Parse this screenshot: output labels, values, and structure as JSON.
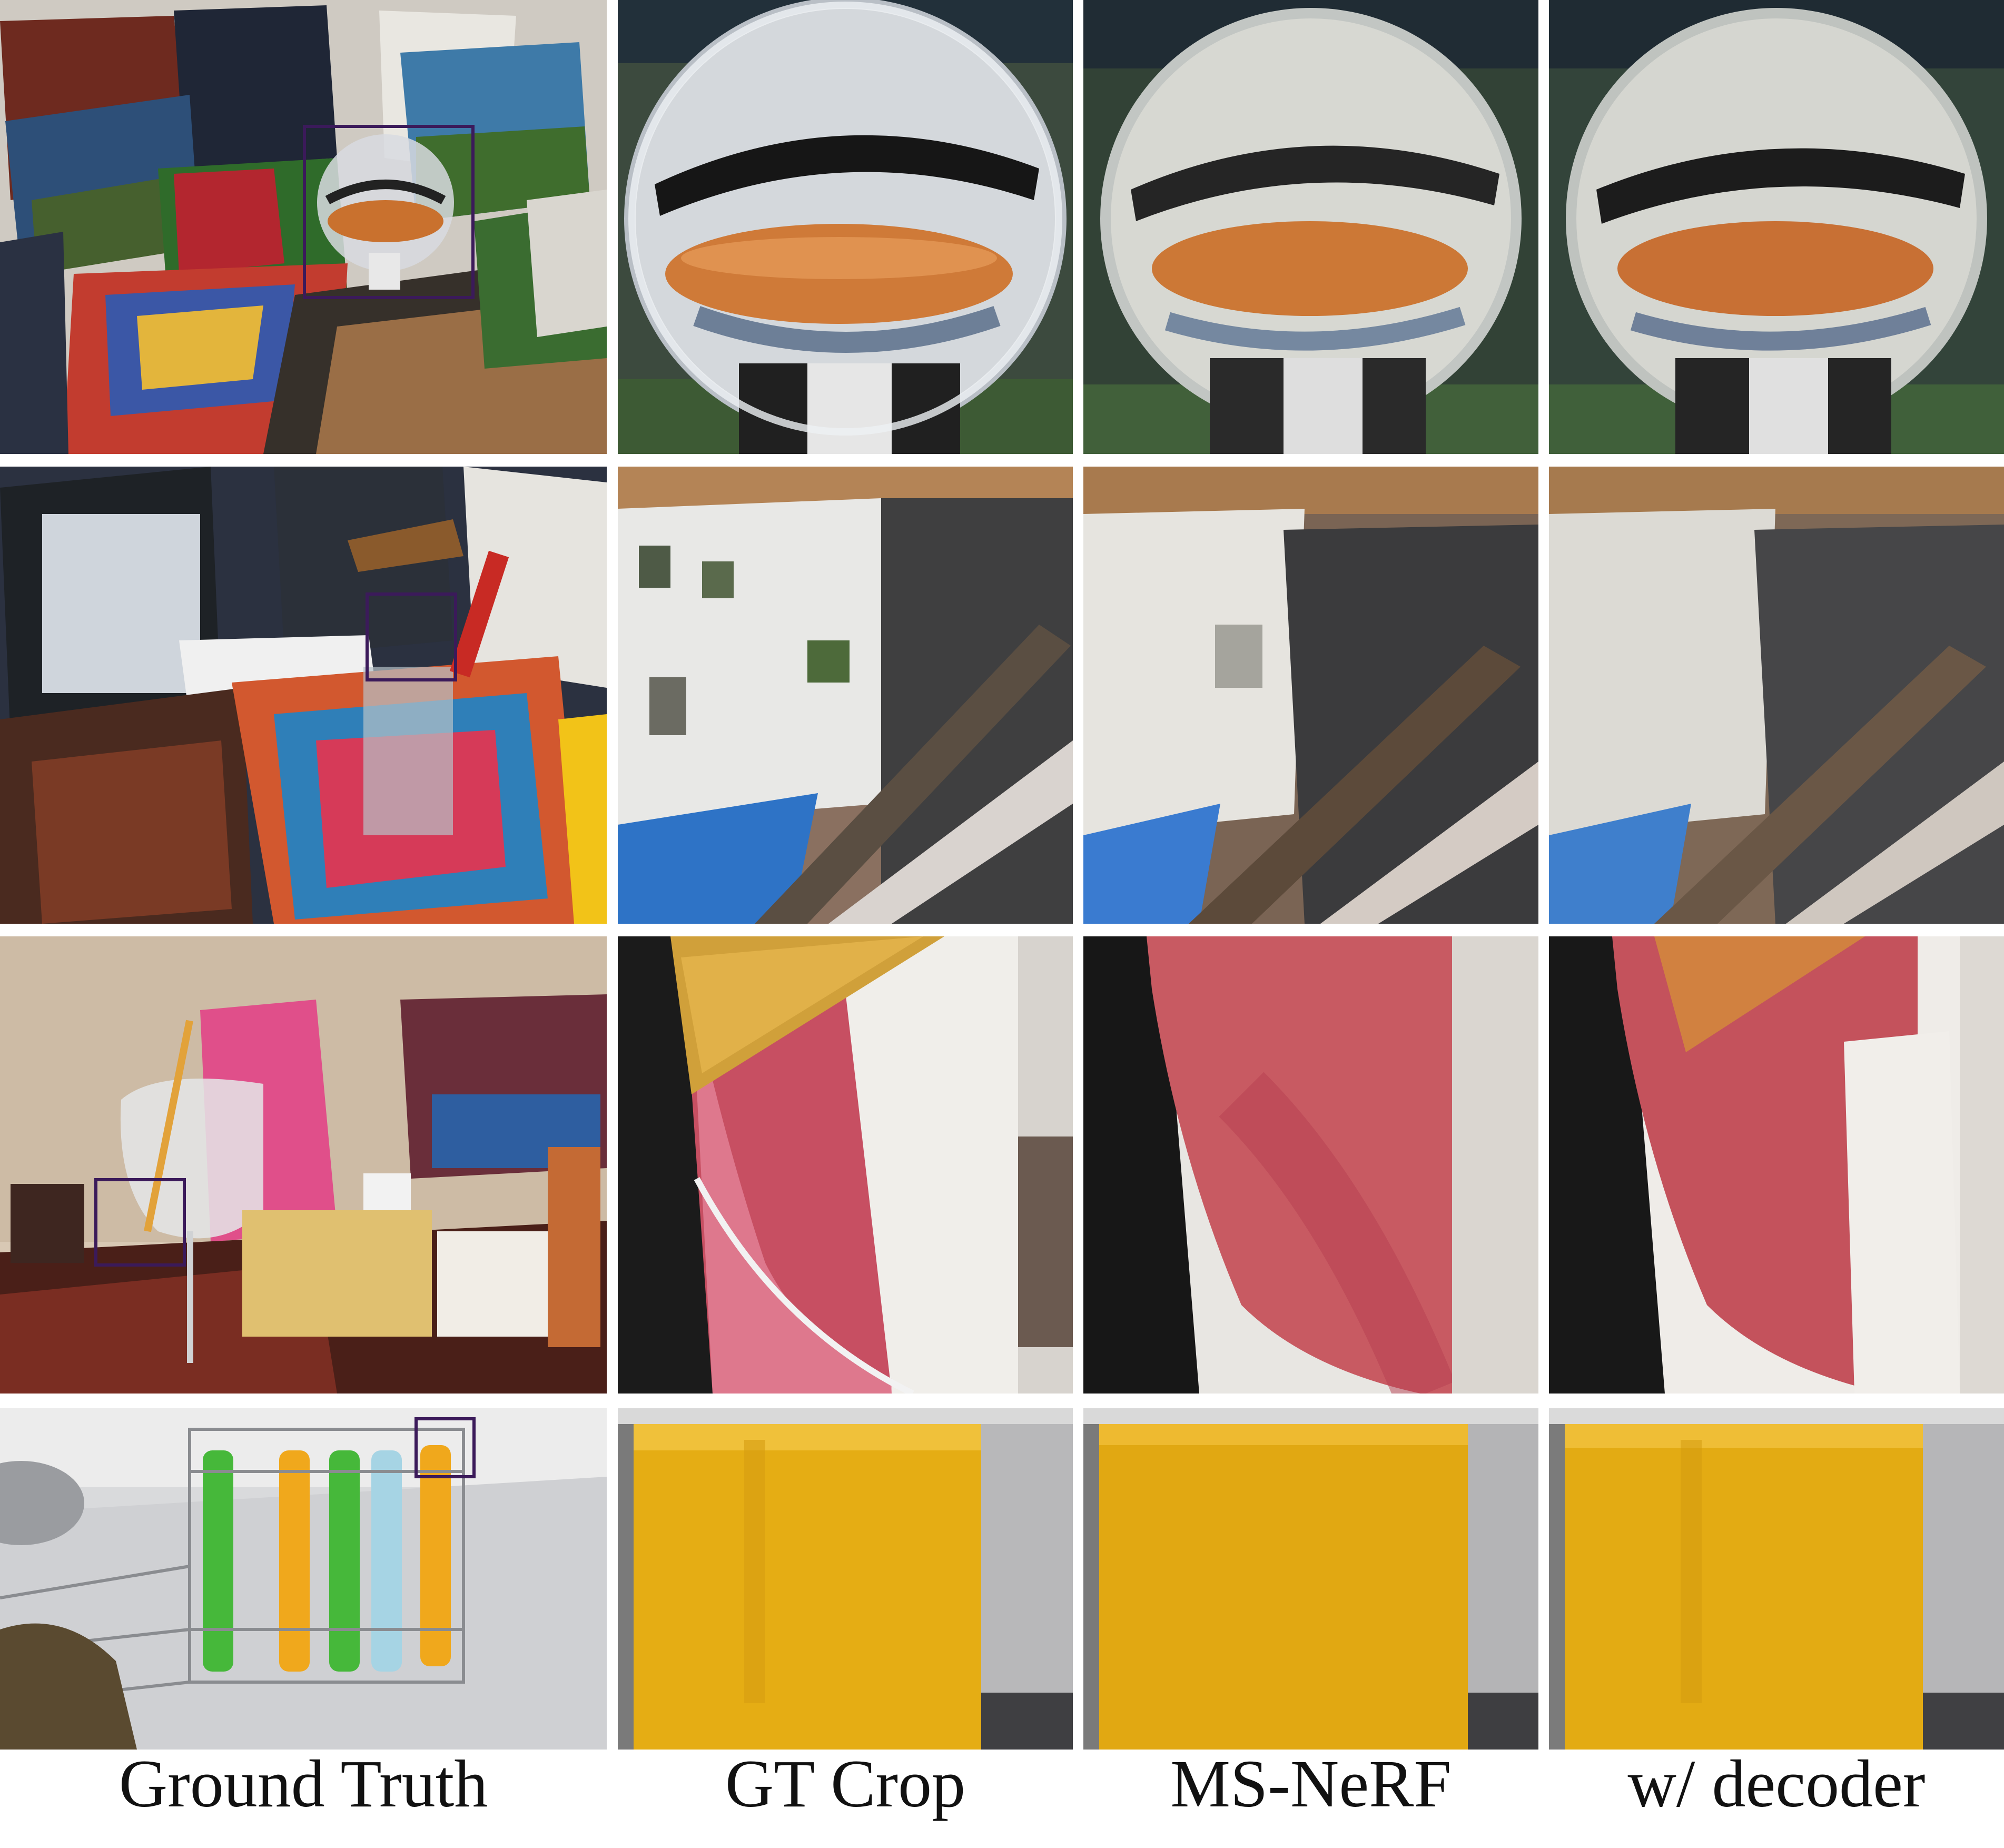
{
  "figure": {
    "columns": [
      {
        "key": "ground_truth",
        "label": "Ground Truth"
      },
      {
        "key": "gt_crop",
        "label": "GT Crop"
      },
      {
        "key": "ms_nerf",
        "label": "MS-NeRF"
      },
      {
        "key": "decoder",
        "label": "w/ decoder"
      }
    ],
    "rows": [
      {
        "scene": "glass-ball-on-postcards"
      },
      {
        "scene": "glass-with-straws-on-books"
      },
      {
        "scene": "wine-glass-on-table"
      },
      {
        "scene": "test-tube-rack"
      }
    ],
    "colors": {
      "highlight_box": "#3b1a5a",
      "background": "#ffffff"
    }
  }
}
